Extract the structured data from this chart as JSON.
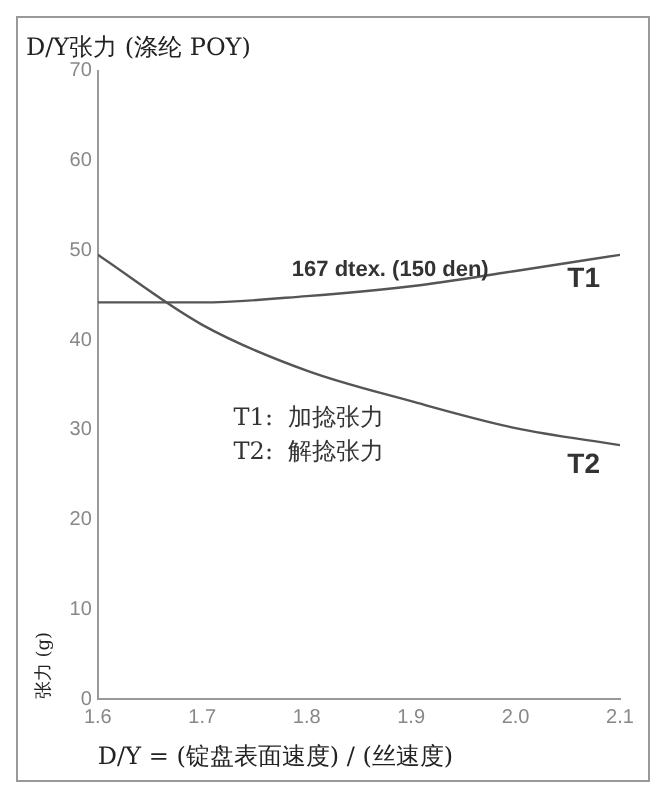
{
  "chart_data": {
    "type": "line",
    "title": "D/Y张力 (涤纶 POY)",
    "xlabel": "D/Y = (锭盘表面速度) / (丝速度)",
    "ylabel": "张力 (g)",
    "x": [
      1.6,
      1.7,
      1.8,
      1.9,
      2.0,
      2.1
    ],
    "series": [
      {
        "name": "T1",
        "color": "#555555",
        "values": [
          44.2,
          44.2,
          44.9,
          46,
          47.7,
          49.5
        ]
      },
      {
        "name": "T2",
        "color": "#555555",
        "values": [
          49.5,
          41.7,
          36.6,
          33.2,
          30.2,
          28.3
        ]
      }
    ],
    "xlim": [
      1.6,
      2.1
    ],
    "xticks": [
      {
        "value": 1.6,
        "label": "1.6"
      },
      {
        "value": 1.7,
        "label": "1.7"
      },
      {
        "value": 1.8,
        "label": "1.8"
      },
      {
        "value": 1.9,
        "label": "1.9"
      },
      {
        "value": 2.0,
        "label": "2.0"
      },
      {
        "value": 2.1,
        "label": "2.1"
      }
    ],
    "ylim": [
      0,
      70
    ],
    "yticks": [
      0,
      10,
      20,
      30,
      40,
      50,
      60,
      70
    ],
    "grid": false,
    "legend": false,
    "marker": "none",
    "line_style": "solid",
    "annotations": [
      {
        "text": "167 dtex. (150 den)",
        "x": 1.88,
        "y": 46
      },
      "T1:  加捻张力",
      "T2:  解捻张力"
    ]
  }
}
